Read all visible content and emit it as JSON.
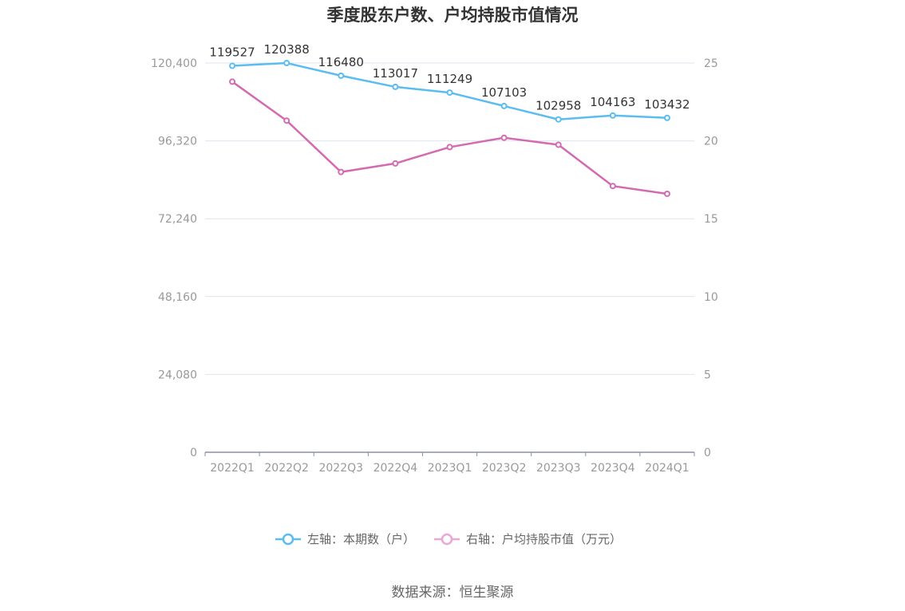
{
  "chart_data": {
    "type": "line",
    "title": "季度股东户数、户均持股市值情况",
    "categories": [
      "2022Q1",
      "2022Q2",
      "2022Q3",
      "2022Q4",
      "2023Q1",
      "2023Q2",
      "2023Q3",
      "2023Q4",
      "2024Q1"
    ],
    "left_axis": {
      "ticks": [
        "0",
        "24,080",
        "48,160",
        "72,240",
        "96,320",
        "120,400"
      ],
      "ylim": [
        0,
        120400
      ]
    },
    "right_axis": {
      "ticks": [
        "0",
        "5",
        "10",
        "15",
        "20",
        "25"
      ],
      "ylim": [
        0,
        25
      ]
    },
    "grid": true,
    "legend_position": "bottom",
    "series": [
      {
        "name": "左轴：本期数（户）",
        "axis": "left",
        "color": "#5bbcf0",
        "values": [
          119527,
          120388,
          116480,
          113017,
          111249,
          107103,
          102958,
          104163,
          103432
        ],
        "labels": [
          "119527",
          "120388",
          "116480",
          "113017",
          "111249",
          "107103",
          "102958",
          "104163",
          "103432"
        ]
      },
      {
        "name": "右轴：户均持股市值（万元）",
        "axis": "right",
        "color": "#d46bb1",
        "values": [
          23.8,
          21.3,
          18.0,
          18.55,
          19.6,
          20.2,
          19.75,
          17.1,
          16.6
        ]
      }
    ],
    "source": "数据来源：恒生聚源"
  }
}
